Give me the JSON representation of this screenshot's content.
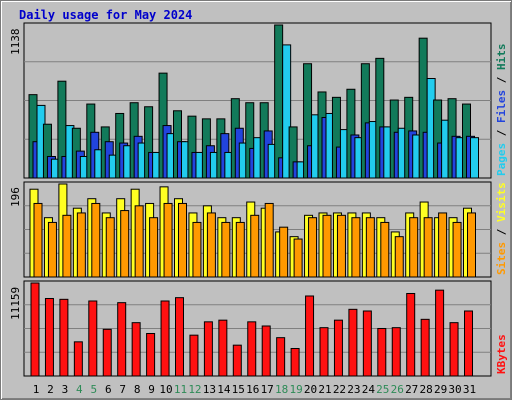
{
  "title": "Daily usage for May 2024",
  "colors": {
    "background": "#c0c0c0",
    "panel": "#c0c0c0",
    "grid": "#808080",
    "hits": "#127a5a",
    "files": "#2244dd",
    "pages": "#22ccee",
    "visits": "#ffff22",
    "sites": "#ff9900",
    "kbytes": "#ff1111",
    "title": "#0000cc",
    "weekend_tick": "#2e8b57",
    "weekday_tick": "#000000"
  },
  "chart_data": [
    {
      "type": "bar",
      "name": "hits-files-pages",
      "ymax_label": "1138",
      "ylim": [
        0,
        1138
      ],
      "categories": [
        "1",
        "2",
        "3",
        "4",
        "5",
        "6",
        "7",
        "8",
        "9",
        "10",
        "11",
        "12",
        "13",
        "14",
        "15",
        "16",
        "17",
        "18",
        "19",
        "20",
        "21",
        "22",
        "23",
        "24",
        "25",
        "26",
        "27",
        "28",
        "29",
        "30",
        "31"
      ],
      "weekend_days": [
        "4",
        "5",
        "11",
        "12",
        "18",
        "19",
        "25",
        "26"
      ],
      "series": [
        {
          "name": "Hits",
          "color": "#127a5a",
          "values": [
            620,
            400,
            720,
            370,
            550,
            380,
            480,
            560,
            530,
            780,
            500,
            460,
            440,
            440,
            590,
            560,
            560,
            1138,
            380,
            850,
            640,
            600,
            660,
            850,
            890,
            580,
            600,
            1040,
            580,
            590,
            550
          ]
        },
        {
          "name": "Files",
          "color": "#2244dd",
          "values": [
            270,
            160,
            160,
            200,
            340,
            270,
            260,
            310,
            190,
            390,
            270,
            190,
            240,
            330,
            370,
            220,
            350,
            150,
            120,
            240,
            450,
            230,
            320,
            410,
            380,
            340,
            350,
            340,
            260,
            310,
            310
          ]
        },
        {
          "name": "Pages",
          "color": "#22ccee",
          "values": [
            540,
            140,
            390,
            160,
            210,
            170,
            240,
            260,
            190,
            330,
            270,
            190,
            190,
            190,
            260,
            300,
            250,
            990,
            120,
            470,
            480,
            360,
            300,
            420,
            380,
            370,
            320,
            740,
            430,
            300,
            300
          ]
        }
      ],
      "vertical_label": [
        {
          "text": "Pages",
          "color": "#22ccee"
        },
        {
          "text": " / ",
          "color": "#000000"
        },
        {
          "text": "Files",
          "color": "#2244dd"
        },
        {
          "text": " / ",
          "color": "#000000"
        },
        {
          "text": "Hits",
          "color": "#127a5a"
        }
      ]
    },
    {
      "type": "bar",
      "name": "visits-sites",
      "ymax_label": "196",
      "ylim": [
        0,
        196
      ],
      "categories": [
        "1",
        "2",
        "3",
        "4",
        "5",
        "6",
        "7",
        "8",
        "9",
        "10",
        "11",
        "12",
        "13",
        "14",
        "15",
        "16",
        "17",
        "18",
        "19",
        "20",
        "21",
        "22",
        "23",
        "24",
        "25",
        "26",
        "27",
        "28",
        "29",
        "30",
        "31"
      ],
      "series": [
        {
          "name": "Visits",
          "color": "#ffff22",
          "values": [
            185,
            125,
            196,
            145,
            165,
            135,
            165,
            185,
            155,
            190,
            165,
            135,
            150,
            125,
            125,
            158,
            145,
            95,
            85,
            130,
            135,
            135,
            135,
            135,
            125,
            95,
            135,
            158,
            125,
            125,
            145
          ]
        },
        {
          "name": "Sites",
          "color": "#ff9900",
          "values": [
            155,
            115,
            130,
            135,
            155,
            125,
            140,
            150,
            125,
            155,
            155,
            115,
            135,
            115,
            115,
            130,
            155,
            105,
            80,
            125,
            130,
            130,
            125,
            125,
            115,
            85,
            125,
            125,
            135,
            115,
            135
          ]
        }
      ],
      "vertical_label": [
        {
          "text": "Sites",
          "color": "#ff9900"
        },
        {
          "text": " / ",
          "color": "#000000"
        },
        {
          "text": "Visits",
          "color": "#ffff22"
        }
      ]
    },
    {
      "type": "bar",
      "name": "kbytes",
      "ymax_label": "11159",
      "ylim": [
        0,
        11159
      ],
      "categories": [
        "1",
        "2",
        "3",
        "4",
        "5",
        "6",
        "7",
        "8",
        "9",
        "10",
        "11",
        "12",
        "13",
        "14",
        "15",
        "16",
        "17",
        "18",
        "19",
        "20",
        "21",
        "22",
        "23",
        "24",
        "25",
        "26",
        "27",
        "28",
        "29",
        "30",
        "31"
      ],
      "series": [
        {
          "name": "KBytes",
          "color": "#ff1111",
          "values": [
            11159,
            9300,
            9200,
            4100,
            9000,
            5600,
            8800,
            6400,
            5100,
            9000,
            9400,
            4900,
            6500,
            6700,
            3700,
            6500,
            6000,
            4600,
            3300,
            9600,
            5800,
            6700,
            8000,
            7800,
            5700,
            5800,
            9900,
            6800,
            10300,
            6400,
            7800
          ]
        }
      ],
      "vertical_label": [
        {
          "text": "KBytes",
          "color": "#ff1111"
        }
      ]
    }
  ]
}
